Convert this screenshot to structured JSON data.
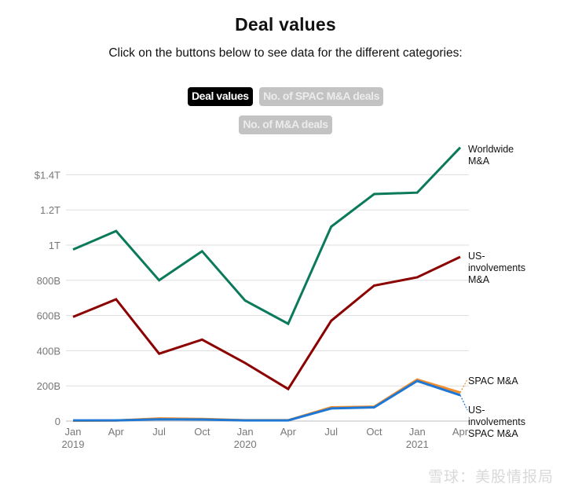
{
  "header": {
    "title": "Deal values",
    "subtitle": "Click on the buttons below to see data for the different categories:"
  },
  "buttons": [
    {
      "label": "Deal values",
      "active": true
    },
    {
      "label": "No. of SPAC M&A deals",
      "active": false
    },
    {
      "label": "No. of M&A deals",
      "active": false
    }
  ],
  "watermark": "雪球：美股情报局",
  "chart_data": {
    "type": "line",
    "title": "Deal values",
    "xlabel": "",
    "ylabel": "",
    "x": [
      "Jan 2019",
      "Apr 2019",
      "Jul 2019",
      "Oct 2019",
      "Jan 2020",
      "Apr 2020",
      "Jul 2020",
      "Oct 2020",
      "Jan 2021",
      "Apr 2021"
    ],
    "x_tick_labels": [
      {
        "line1": "Jan",
        "line2": "2019"
      },
      {
        "line1": "Apr",
        "line2": ""
      },
      {
        "line1": "Jul",
        "line2": ""
      },
      {
        "line1": "Oct",
        "line2": ""
      },
      {
        "line1": "Jan",
        "line2": "2020"
      },
      {
        "line1": "Apr",
        "line2": ""
      },
      {
        "line1": "Jul",
        "line2": ""
      },
      {
        "line1": "Oct",
        "line2": ""
      },
      {
        "line1": "Jan",
        "line2": "2021"
      },
      {
        "line1": "Apr",
        "line2": ""
      }
    ],
    "y_unit": "billions USD",
    "ylim": [
      0,
      1560
    ],
    "y_ticks": [
      {
        "value": 0,
        "label": "0"
      },
      {
        "value": 200,
        "label": "200B"
      },
      {
        "value": 400,
        "label": "400B"
      },
      {
        "value": 600,
        "label": "600B"
      },
      {
        "value": 800,
        "label": "800B"
      },
      {
        "value": 1000,
        "label": "1T"
      },
      {
        "value": 1200,
        "label": "1.2T"
      },
      {
        "value": 1400,
        "label": "$1.4T"
      }
    ],
    "grid": true,
    "legend": "direct-labels-right",
    "series": [
      {
        "name": "Worldwide M&A",
        "label_lines": [
          "Worldwide",
          "M&A"
        ],
        "color": "#0a7a5a",
        "values": [
          975,
          1080,
          800,
          965,
          685,
          553,
          1105,
          1290,
          1298,
          1555
        ]
      },
      {
        "name": "US-involvements M&A",
        "label_lines": [
          "US-",
          "involvements",
          "M&A"
        ],
        "color": "#8b0000",
        "values": [
          592,
          692,
          383,
          463,
          330,
          182,
          570,
          770,
          817,
          933
        ]
      },
      {
        "name": "SPAC M&A",
        "label_lines": [
          "SPAC M&A"
        ],
        "color": "#f28e2b",
        "values": [
          2,
          3,
          15,
          12,
          5,
          5,
          78,
          82,
          236,
          162
        ]
      },
      {
        "name": "US-involvements SPAC M&A",
        "label_lines": [
          "US-",
          "involvements",
          "SPAC M&A"
        ],
        "color": "#1f77d4",
        "values": [
          4,
          4,
          10,
          9,
          4,
          4,
          72,
          78,
          228,
          147
        ]
      }
    ]
  }
}
